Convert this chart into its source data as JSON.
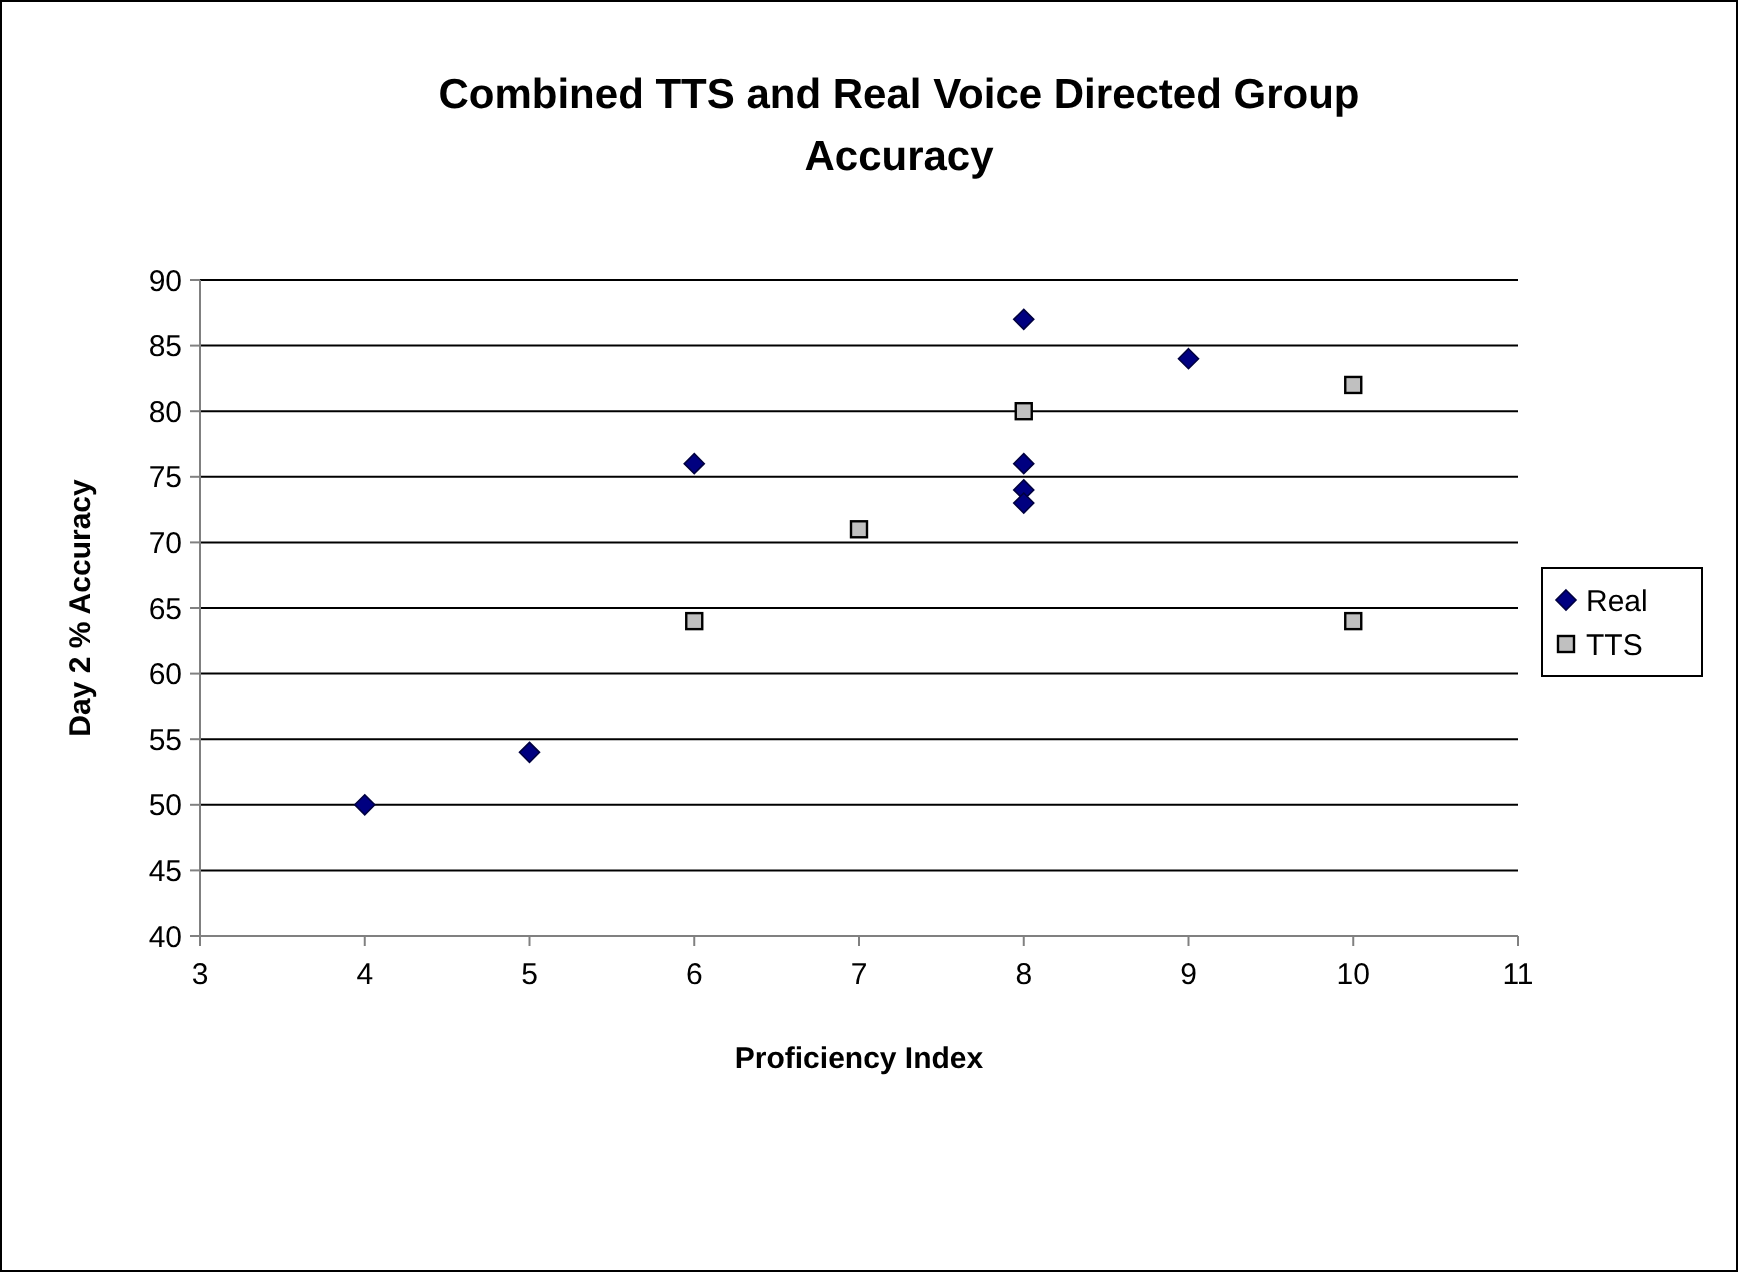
{
  "chart_data": {
    "type": "scatter",
    "title": "Combined TTS and Real Voice Directed Group Accuracy",
    "xlabel": "Proficiency Index",
    "ylabel": "Day 2 % Accuracy",
    "series": [
      {
        "name": "Real",
        "color": "#000080",
        "marker": "diamond",
        "x": [
          4,
          5,
          6,
          8,
          8,
          8,
          8,
          9
        ],
        "values": [
          50,
          54,
          76,
          87,
          76,
          74,
          73,
          84
        ]
      },
      {
        "name": "TTS",
        "color": "#c0c0c0",
        "marker": "square",
        "x": [
          6,
          7,
          8,
          10,
          10
        ],
        "values": [
          64,
          71,
          80,
          82,
          64
        ]
      }
    ],
    "xlim": [
      3,
      11
    ],
    "xticks": [
      3,
      4,
      5,
      6,
      7,
      8,
      9,
      10,
      11
    ],
    "ylim": [
      40,
      90
    ],
    "yticks": [
      40,
      45,
      50,
      55,
      60,
      65,
      70,
      75,
      80,
      85,
      90
    ],
    "grid": "y",
    "legend": "right"
  }
}
